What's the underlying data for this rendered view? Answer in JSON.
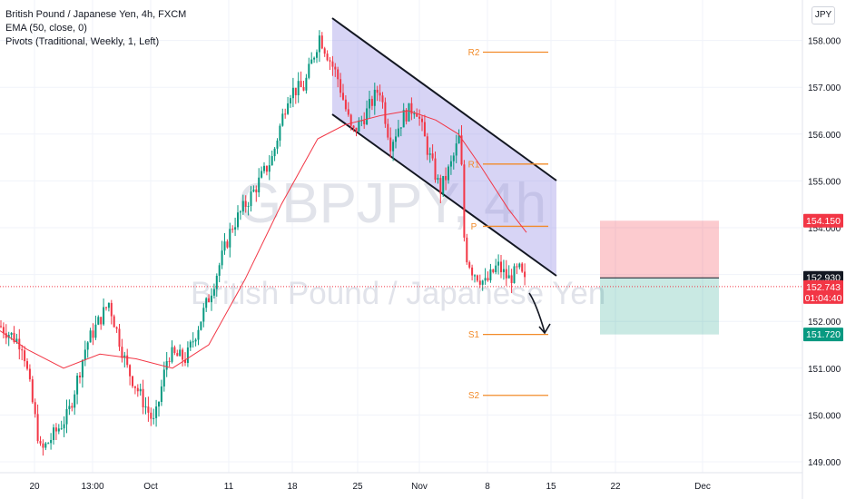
{
  "legend": {
    "title": "British Pound / Japanese Yen, 4h, FXCM",
    "ema": "EMA (50, close, 0)",
    "pivots": "Pivots (Traditional, Weekly, 1, Left)"
  },
  "watermark": {
    "symbol": "GBPJPY, 4h",
    "name": "British Pound / Japanese Yen"
  },
  "currency_button": "JPY",
  "chart_data": {
    "type": "candlestick",
    "symbol": "GBPJPY",
    "interval": "4h",
    "ylim": [
      148.75,
      158.4
    ],
    "y_ticks": [
      "158.000",
      "157.000",
      "156.000",
      "155.000",
      "154.000",
      "153.000",
      "152.000",
      "151.000",
      "150.000",
      "149.000"
    ],
    "y_tick_values": [
      158,
      157,
      156,
      155,
      154,
      153,
      152,
      151,
      150,
      149
    ],
    "x_ticks": [
      "20",
      "13:00",
      "Oct",
      "11",
      "18",
      "25",
      "Nov",
      "8",
      "15",
      "22",
      "Dec"
    ],
    "price_series_key_points": [
      [
        0,
        151.9
      ],
      [
        25,
        151.5
      ],
      [
        45,
        149.2
      ],
      [
        75,
        150.0
      ],
      [
        95,
        151.5
      ],
      [
        120,
        152.4
      ],
      [
        140,
        151.0
      ],
      [
        170,
        149.8
      ],
      [
        185,
        151.3
      ],
      [
        205,
        151.2
      ],
      [
        230,
        152.5
      ],
      [
        255,
        154.0
      ],
      [
        280,
        154.8
      ],
      [
        300,
        155.5
      ],
      [
        318,
        156.9
      ],
      [
        335,
        157.0
      ],
      [
        352,
        158.1
      ],
      [
        372,
        157.2
      ],
      [
        388,
        156.0
      ],
      [
        402,
        156.4
      ],
      [
        418,
        157.0
      ],
      [
        430,
        155.8
      ],
      [
        445,
        156.4
      ],
      [
        458,
        156.6
      ],
      [
        472,
        155.6
      ],
      [
        485,
        154.8
      ],
      [
        498,
        155.4
      ],
      [
        507,
        156.0
      ],
      [
        512,
        153.5
      ],
      [
        520,
        153.1
      ],
      [
        535,
        152.8
      ],
      [
        548,
        153.2
      ],
      [
        560,
        152.9
      ],
      [
        572,
        153.1
      ],
      [
        580,
        152.74
      ]
    ],
    "ema_series_key_points": [
      [
        0,
        151.8
      ],
      [
        30,
        151.4
      ],
      [
        70,
        151.0
      ],
      [
        110,
        151.3
      ],
      [
        150,
        151.2
      ],
      [
        190,
        151.0
      ],
      [
        230,
        151.5
      ],
      [
        270,
        152.9
      ],
      [
        310,
        154.5
      ],
      [
        350,
        155.9
      ],
      [
        380,
        156.2
      ],
      [
        420,
        156.4
      ],
      [
        450,
        156.5
      ],
      [
        480,
        156.3
      ],
      [
        505,
        156.0
      ],
      [
        530,
        155.3
      ],
      [
        560,
        154.4
      ],
      [
        580,
        153.9
      ]
    ],
    "pivots": [
      {
        "label": "R2",
        "value": 157.75
      },
      {
        "label": "R1",
        "value": 155.36
      },
      {
        "label": "P",
        "value": 154.03
      },
      {
        "label": "S1",
        "value": 151.72
      },
      {
        "label": "S2",
        "value": 150.42
      }
    ],
    "price_labels": [
      {
        "text": "154.150",
        "value": 154.15,
        "color": "#f23645"
      },
      {
        "text": "152.930",
        "value": 152.93,
        "color": "#131722"
      },
      {
        "text": "152.743",
        "value": 152.743,
        "color": "#f23645",
        "sub": "01:04:40"
      },
      {
        "text": "151.720",
        "value": 151.72,
        "color": "#089981"
      }
    ],
    "trade_box": {
      "stop": 154.15,
      "entry": 152.93,
      "target": 151.72
    },
    "colors": {
      "up": "#089981",
      "down": "#f23645",
      "ema": "#f23645",
      "pivot": "#f28b2a",
      "channel": "#9c94e6"
    }
  }
}
